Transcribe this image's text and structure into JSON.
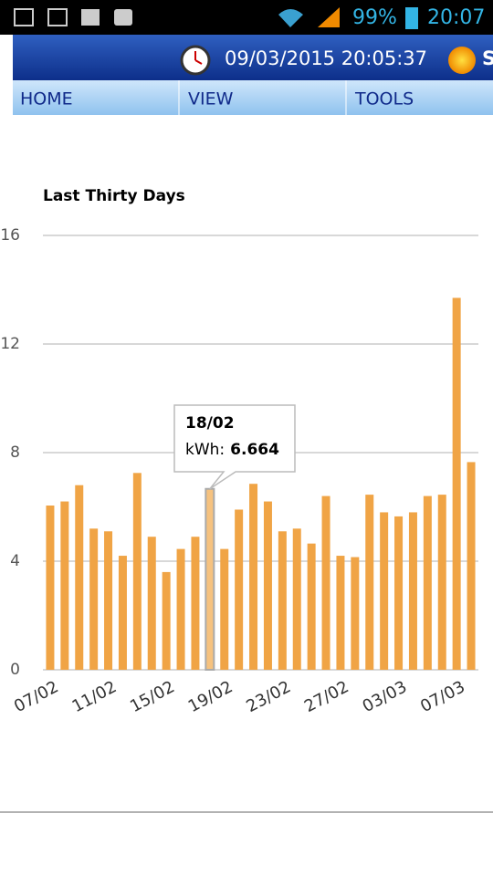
{
  "status_bar": {
    "battery": "99%",
    "time": "20:07"
  },
  "header": {
    "datetime": "09/03/2015 20:05:37",
    "cut_text": "S"
  },
  "nav": [
    "HOME",
    "VIEW",
    "TOOLS"
  ],
  "chart_data": {
    "type": "bar",
    "title": "Last Thirty Days",
    "categories": [
      "07/02",
      null,
      null,
      null,
      "11/02",
      null,
      null,
      null,
      "15/02",
      null,
      null,
      null,
      "19/02",
      null,
      null,
      null,
      "23/02",
      null,
      null,
      null,
      "27/02",
      null,
      null,
      null,
      "03/03",
      null,
      null,
      null,
      "07/03",
      null
    ],
    "values": [
      6.05,
      6.2,
      6.8,
      5.2,
      5.1,
      4.2,
      7.25,
      4.9,
      3.6,
      4.45,
      4.9,
      6.664,
      4.45,
      5.9,
      6.85,
      6.2,
      5.1,
      5.2,
      4.65,
      6.4,
      4.2,
      4.15,
      6.45,
      5.8,
      5.65,
      5.8,
      6.4,
      6.45,
      13.7,
      7.65
    ],
    "color": "#f0a445",
    "ylim": [
      0,
      16
    ],
    "yticks": [
      0,
      4,
      8,
      12,
      16
    ],
    "grid": true,
    "tooltip": {
      "title": "18/02",
      "label": "kWh:"
    }
  }
}
